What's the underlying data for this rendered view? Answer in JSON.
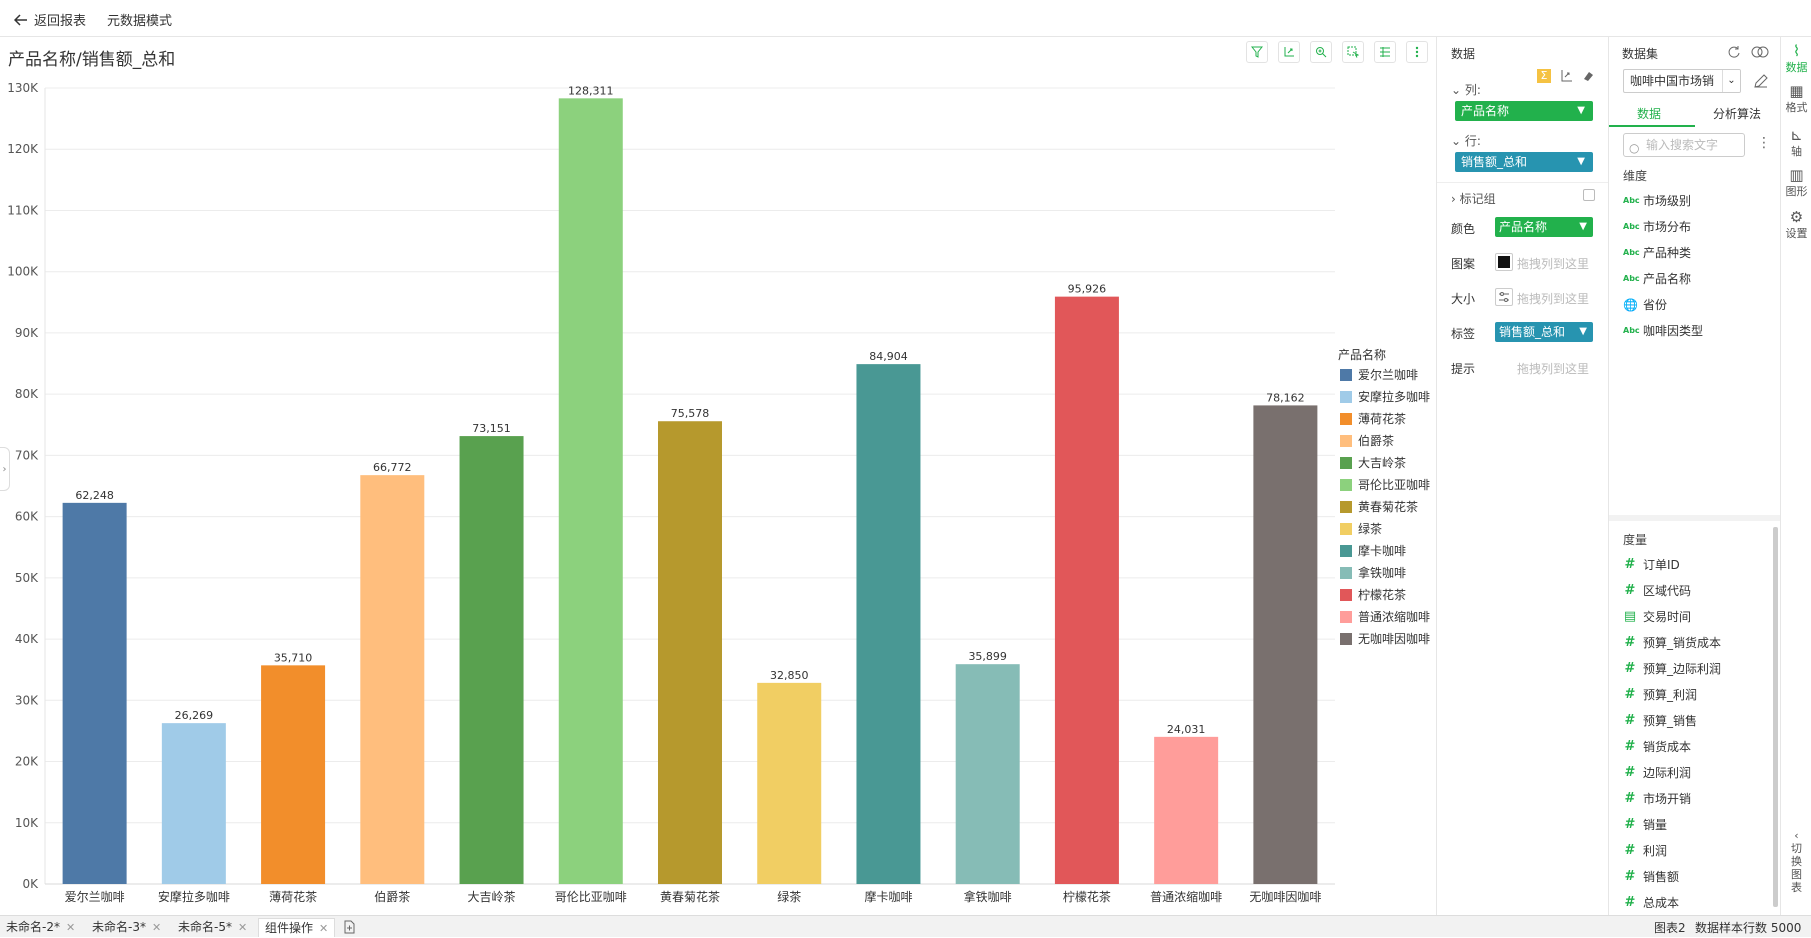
{
  "topbar": {
    "back_label": "返回报表",
    "meta_mode": "元数据模式"
  },
  "chart_data": {
    "type": "bar",
    "title": "产品名称/销售额_总和",
    "categories": [
      "爱尔兰咖啡",
      "安摩拉多咖啡",
      "薄荷花茶",
      "伯爵茶",
      "大吉岭茶",
      "哥伦比亚咖啡",
      "黄春菊花茶",
      "绿茶",
      "摩卡咖啡",
      "拿铁咖啡",
      "柠檬花茶",
      "普通浓缩咖啡",
      "无咖啡因咖啡"
    ],
    "values": [
      62248,
      26269,
      35710,
      66772,
      73151,
      128311,
      75578,
      32850,
      84904,
      35899,
      95926,
      24031,
      78162
    ],
    "value_labels": [
      "62,248",
      "26,269",
      "35,710",
      "66,772",
      "73,151",
      "128,311",
      "75,578",
      "32,850",
      "84,904",
      "35,899",
      "95,926",
      "24,031",
      "78,162"
    ],
    "colors": [
      "#4e79a7",
      "#a0cbe8",
      "#f28e2b",
      "#ffbe7d",
      "#59a14f",
      "#8cd17d",
      "#b6992d",
      "#f1ce63",
      "#499894",
      "#86bcb6",
      "#e15759",
      "#ff9d9a",
      "#79706e"
    ],
    "y_ticks": [
      "0K",
      "10K",
      "20K",
      "30K",
      "40K",
      "50K",
      "60K",
      "70K",
      "80K",
      "90K",
      "100K",
      "110K",
      "120K",
      "130K"
    ],
    "ylim": [
      0,
      130000
    ],
    "xlabel": "",
    "ylabel": "",
    "grid": true,
    "legend_title": "产品名称",
    "legend_labels": [
      "爱尔兰咖啡",
      "安摩拉多咖啡",
      "薄荷花茶",
      "伯爵茶",
      "大吉岭茶",
      "哥伦比亚咖啡",
      "黄春菊花茶",
      "绿茶",
      "摩卡咖啡",
      "拿铁咖啡",
      "柠檬花茶",
      "普通浓缩咖啡",
      "无咖啡因咖啡"
    ]
  },
  "data_panel": {
    "title": "数据",
    "columns_label": "列:",
    "columns_field": "产品名称",
    "rows_label": "行:",
    "rows_field": "销售额_总和",
    "marks_label": "标记组",
    "color_label": "颜色",
    "color_field": "产品名称",
    "pattern_label": "图案",
    "pattern_placeholder": "拖拽列到这里",
    "size_label": "大小",
    "size_placeholder": "拖拽列到这里",
    "label_label": "标签",
    "label_field": "销售额_总和",
    "tooltip_label": "提示",
    "tooltip_placeholder": "拖拽列到这里"
  },
  "dataset_panel": {
    "title": "数据集",
    "selected_dataset": "咖啡中国市场销",
    "tab_data": "数据",
    "tab_algo": "分析算法",
    "search_placeholder": "输入搜索文字",
    "dimensions_label": "维度",
    "dimensions": [
      "市场级别",
      "市场分布",
      "产品种类",
      "产品名称",
      "省份",
      "咖啡因类型"
    ],
    "measures_label": "度量",
    "measures": [
      "订单ID",
      "区域代码",
      "交易时间",
      "预算_销货成本",
      "预算_边际利润",
      "预算_利润",
      "预算_销售",
      "销货成本",
      "边际利润",
      "市场开销",
      "销量",
      "利润",
      "销售额",
      "总成本"
    ]
  },
  "right_rail": {
    "data": "数据",
    "format": "格式",
    "axis": "轴",
    "shape": "图形",
    "settings": "设置",
    "switch": "切换图表"
  },
  "bottom_tabs": [
    "未命名-2*",
    "未命名-3*",
    "未命名-5*",
    "组件操作"
  ],
  "status": {
    "chart_name": "图表2",
    "sample_rows": "数据样本行数 5000"
  }
}
